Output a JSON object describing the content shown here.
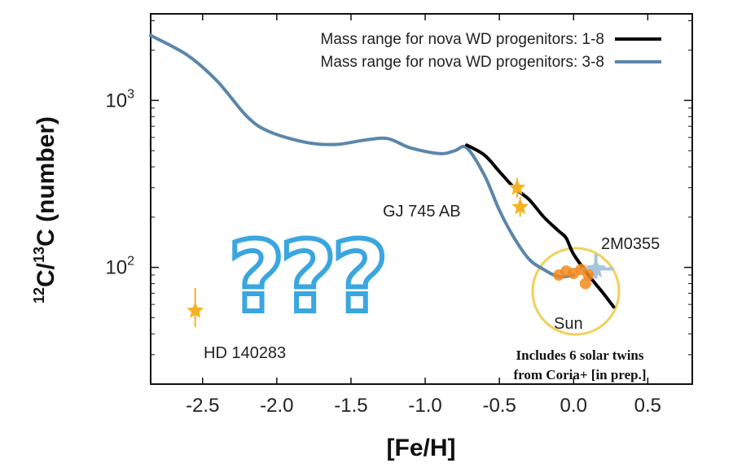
{
  "chart_data": {
    "type": "line",
    "xlabel": "[Fe/H]",
    "ylabel": "12C/13C (number)",
    "ylabel_parts": {
      "sup1": "12",
      "c1": "C/",
      "sup2": "13",
      "c2": "C (number)"
    },
    "xlim": [
      -2.85,
      0.8
    ],
    "ylim": [
      20,
      3300
    ],
    "y_scale": "log",
    "x_ticks": [
      -2.5,
      -2.0,
      -1.5,
      -1.0,
      -0.5,
      0.0,
      0.5
    ],
    "x_tick_labels": [
      "-2.5",
      "-2.0",
      "-1.5",
      "-1.0",
      "-0.5",
      "0.0",
      "0.5"
    ],
    "y_ticks": [
      100,
      1000
    ],
    "y_tick_labels": [
      {
        "base": "10",
        "exp": "2"
      },
      {
        "base": "10",
        "exp": "3"
      }
    ],
    "legend_position": "top-right",
    "series": [
      {
        "name": "Mass range for nova WD progenitors: 1-8",
        "color": "#000000",
        "x": [
          -0.72,
          -0.6,
          -0.5,
          -0.4,
          -0.3,
          -0.2,
          -0.1,
          -0.05,
          0.0,
          0.1,
          0.2,
          0.27
        ],
        "y": [
          540,
          470,
          375,
          300,
          255,
          200,
          165,
          150,
          120,
          90,
          70,
          58
        ]
      },
      {
        "name": "Mass range for nova WD progenitors: 3-8",
        "color": "#5b86aa",
        "x": [
          -2.85,
          -2.6,
          -2.4,
          -2.2,
          -2.05,
          -1.8,
          -1.6,
          -1.4,
          -1.25,
          -1.1,
          -0.9,
          -0.8,
          -0.72,
          -0.6,
          -0.5,
          -0.4,
          -0.3,
          -0.2,
          -0.1,
          0.0
        ],
        "y": [
          2450,
          1860,
          1300,
          800,
          650,
          560,
          545,
          580,
          590,
          520,
          480,
          500,
          520,
          355,
          220,
          150,
          112,
          97,
          88,
          90
        ]
      }
    ],
    "points": [
      {
        "label": "GJ 745 AB",
        "x": [
          -0.38,
          -0.36
        ],
        "y": [
          300,
          230
        ],
        "color": "#f5b324"
      },
      {
        "label": "HD 140283",
        "x": [
          -2.55
        ],
        "y": [
          55
        ],
        "color": "#f5b324"
      },
      {
        "label": "2M0355",
        "x": [
          0.15
        ],
        "y": [
          98
        ],
        "color": "#a8c4de"
      },
      {
        "label": "Sun",
        "x": [
          -0.1,
          -0.05,
          0.0,
          0.05,
          0.1,
          0.08
        ],
        "y": [
          90,
          95,
          92,
          97,
          90,
          80
        ],
        "color": "#f28a1c"
      }
    ],
    "annotations": {
      "sun": "Sun",
      "gj745": "GJ 745 AB",
      "hd": "HD 140283",
      "m0355": "2M0355",
      "note_line1": "Includes 6 solar twins",
      "note_line2": "from Coria+ [in prep.]",
      "qmarks": "???"
    }
  }
}
